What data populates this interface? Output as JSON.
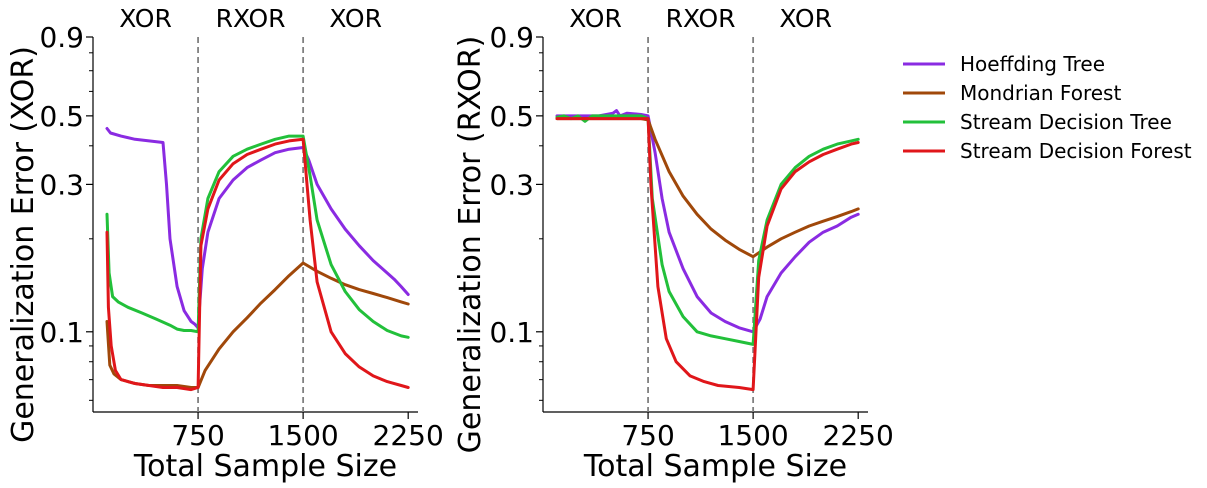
{
  "colors": {
    "hoeffding": "#8a2be2",
    "mondrian": "#a0480a",
    "sdt": "#22c03a",
    "sdf": "#e0161a",
    "divider": "#808080"
  },
  "legend": [
    {
      "key": "hoeffding",
      "label": "Hoeffding Tree"
    },
    {
      "key": "mondrian",
      "label": "Mondrian Forest"
    },
    {
      "key": "sdt",
      "label": "Stream Decision Tree"
    },
    {
      "key": "sdf",
      "label": "Stream Decision Forest"
    }
  ],
  "chart_data": [
    {
      "type": "line",
      "xlabel": "Total Sample Size",
      "ylabel": "Generalization Error (XOR)",
      "xlim": [
        0,
        2320
      ],
      "ylim": [
        0.055,
        0.9
      ],
      "yscale": "log",
      "xticks": [
        750,
        1500,
        2250
      ],
      "xticklabels": [
        "750",
        "1500",
        "2250"
      ],
      "yticks": [
        0.1,
        0.3,
        0.5,
        0.9
      ],
      "yticklabels": [
        "0.1",
        "0.3",
        "0.5",
        "0.9"
      ],
      "dividers": [
        750,
        1500
      ],
      "regions": [
        {
          "label": "XOR",
          "x": 375
        },
        {
          "label": "RXOR",
          "x": 1125
        },
        {
          "label": "XOR",
          "x": 1875
        }
      ],
      "series": [
        {
          "key": "hoeffding",
          "points": [
            [
              100,
              0.455
            ],
            [
              125,
              0.44
            ],
            [
              200,
              0.43
            ],
            [
              300,
              0.42
            ],
            [
              400,
              0.415
            ],
            [
              500,
              0.41
            ],
            [
              525,
              0.3
            ],
            [
              550,
              0.2
            ],
            [
              600,
              0.14
            ],
            [
              650,
              0.117
            ],
            [
              700,
              0.108
            ],
            [
              725,
              0.106
            ],
            [
              750,
              0.103
            ],
            [
              760,
              0.12
            ],
            [
              780,
              0.16
            ],
            [
              820,
              0.21
            ],
            [
              900,
              0.27
            ],
            [
              1000,
              0.31
            ],
            [
              1100,
              0.34
            ],
            [
              1200,
              0.36
            ],
            [
              1300,
              0.38
            ],
            [
              1400,
              0.39
            ],
            [
              1500,
              0.395
            ],
            [
              1540,
              0.36
            ],
            [
              1600,
              0.3
            ],
            [
              1700,
              0.25
            ],
            [
              1800,
              0.215
            ],
            [
              1900,
              0.19
            ],
            [
              2000,
              0.17
            ],
            [
              2100,
              0.155
            ],
            [
              2150,
              0.148
            ],
            [
              2200,
              0.14
            ],
            [
              2250,
              0.132
            ]
          ]
        },
        {
          "key": "mondrian",
          "points": [
            [
              100,
              0.108
            ],
            [
              120,
              0.078
            ],
            [
              150,
              0.073
            ],
            [
              200,
              0.07
            ],
            [
              300,
              0.068
            ],
            [
              400,
              0.067
            ],
            [
              500,
              0.067
            ],
            [
              600,
              0.067
            ],
            [
              700,
              0.066
            ],
            [
              750,
              0.066
            ],
            [
              800,
              0.075
            ],
            [
              900,
              0.088
            ],
            [
              1000,
              0.1
            ],
            [
              1100,
              0.111
            ],
            [
              1200,
              0.124
            ],
            [
              1300,
              0.137
            ],
            [
              1400,
              0.152
            ],
            [
              1500,
              0.167
            ],
            [
              1600,
              0.157
            ],
            [
              1700,
              0.149
            ],
            [
              1800,
              0.142
            ],
            [
              1900,
              0.137
            ],
            [
              2000,
              0.133
            ],
            [
              2100,
              0.129
            ],
            [
              2200,
              0.125
            ],
            [
              2250,
              0.123
            ]
          ]
        },
        {
          "key": "sdt",
          "points": [
            [
              100,
              0.24
            ],
            [
              115,
              0.155
            ],
            [
              140,
              0.13
            ],
            [
              180,
              0.125
            ],
            [
              250,
              0.12
            ],
            [
              350,
              0.115
            ],
            [
              450,
              0.11
            ],
            [
              550,
              0.105
            ],
            [
              600,
              0.102
            ],
            [
              650,
              0.101
            ],
            [
              700,
              0.101
            ],
            [
              750,
              0.1
            ],
            [
              770,
              0.2
            ],
            [
              820,
              0.27
            ],
            [
              900,
              0.33
            ],
            [
              1000,
              0.37
            ],
            [
              1100,
              0.39
            ],
            [
              1200,
              0.405
            ],
            [
              1300,
              0.42
            ],
            [
              1400,
              0.43
            ],
            [
              1500,
              0.43
            ],
            [
              1550,
              0.32
            ],
            [
              1600,
              0.23
            ],
            [
              1700,
              0.165
            ],
            [
              1800,
              0.135
            ],
            [
              1900,
              0.118
            ],
            [
              2000,
              0.108
            ],
            [
              2100,
              0.101
            ],
            [
              2200,
              0.097
            ],
            [
              2250,
              0.096
            ]
          ]
        },
        {
          "key": "sdf",
          "points": [
            [
              100,
              0.21
            ],
            [
              110,
              0.12
            ],
            [
              130,
              0.09
            ],
            [
              160,
              0.075
            ],
            [
              200,
              0.07
            ],
            [
              300,
              0.068
            ],
            [
              400,
              0.067
            ],
            [
              500,
              0.066
            ],
            [
              600,
              0.066
            ],
            [
              700,
              0.065
            ],
            [
              750,
              0.066
            ],
            [
              770,
              0.19
            ],
            [
              820,
              0.25
            ],
            [
              900,
              0.31
            ],
            [
              1000,
              0.35
            ],
            [
              1100,
              0.375
            ],
            [
              1200,
              0.39
            ],
            [
              1300,
              0.405
            ],
            [
              1400,
              0.415
            ],
            [
              1500,
              0.42
            ],
            [
              1550,
              0.23
            ],
            [
              1600,
              0.145
            ],
            [
              1700,
              0.1
            ],
            [
              1800,
              0.085
            ],
            [
              1900,
              0.077
            ],
            [
              2000,
              0.072
            ],
            [
              2100,
              0.069
            ],
            [
              2200,
              0.067
            ],
            [
              2250,
              0.066
            ]
          ]
        }
      ]
    },
    {
      "type": "line",
      "xlabel": "Total Sample Size",
      "ylabel": "Generalization Error (RXOR)",
      "xlim": [
        0,
        2320
      ],
      "ylim": [
        0.055,
        0.9
      ],
      "yscale": "log",
      "xticks": [
        750,
        1500,
        2250
      ],
      "xticklabels": [
        "750",
        "1500",
        "2250"
      ],
      "yticks": [
        0.1,
        0.3,
        0.5,
        0.9
      ],
      "yticklabels": [
        "0.1",
        "0.3",
        "0.5",
        "0.9"
      ],
      "dividers": [
        750,
        1500
      ],
      "regions": [
        {
          "label": "XOR",
          "x": 375
        },
        {
          "label": "RXOR",
          "x": 1125
        },
        {
          "label": "XOR",
          "x": 1875
        }
      ],
      "series": [
        {
          "key": "hoeffding",
          "points": [
            [
              100,
              0.5
            ],
            [
              200,
              0.5
            ],
            [
              300,
              0.5
            ],
            [
              400,
              0.5
            ],
            [
              500,
              0.51
            ],
            [
              525,
              0.52
            ],
            [
              550,
              0.5
            ],
            [
              600,
              0.51
            ],
            [
              700,
              0.505
            ],
            [
              750,
              0.5
            ],
            [
              800,
              0.38
            ],
            [
              850,
              0.27
            ],
            [
              900,
              0.21
            ],
            [
              1000,
              0.16
            ],
            [
              1100,
              0.13
            ],
            [
              1200,
              0.115
            ],
            [
              1300,
              0.108
            ],
            [
              1400,
              0.103
            ],
            [
              1500,
              0.1
            ],
            [
              1550,
              0.11
            ],
            [
              1600,
              0.13
            ],
            [
              1700,
              0.155
            ],
            [
              1800,
              0.175
            ],
            [
              1900,
              0.195
            ],
            [
              2000,
              0.21
            ],
            [
              2100,
              0.22
            ],
            [
              2200,
              0.235
            ],
            [
              2250,
              0.24
            ]
          ]
        },
        {
          "key": "mondrian",
          "points": [
            [
              100,
              0.49
            ],
            [
              200,
              0.49
            ],
            [
              300,
              0.49
            ],
            [
              400,
              0.49
            ],
            [
              500,
              0.49
            ],
            [
              600,
              0.49
            ],
            [
              700,
              0.49
            ],
            [
              750,
              0.485
            ],
            [
              800,
              0.42
            ],
            [
              900,
              0.33
            ],
            [
              1000,
              0.275
            ],
            [
              1100,
              0.24
            ],
            [
              1200,
              0.215
            ],
            [
              1300,
              0.198
            ],
            [
              1400,
              0.185
            ],
            [
              1500,
              0.175
            ],
            [
              1600,
              0.188
            ],
            [
              1700,
              0.2
            ],
            [
              1800,
              0.21
            ],
            [
              1900,
              0.22
            ],
            [
              2000,
              0.228
            ],
            [
              2100,
              0.236
            ],
            [
              2200,
              0.245
            ],
            [
              2250,
              0.25
            ]
          ]
        },
        {
          "key": "sdt",
          "points": [
            [
              100,
              0.495
            ],
            [
              150,
              0.5
            ],
            [
              200,
              0.49
            ],
            [
              250,
              0.5
            ],
            [
              300,
              0.48
            ],
            [
              350,
              0.5
            ],
            [
              400,
              0.5
            ],
            [
              500,
              0.5
            ],
            [
              600,
              0.5
            ],
            [
              700,
              0.5
            ],
            [
              750,
              0.49
            ],
            [
              780,
              0.27
            ],
            [
              850,
              0.165
            ],
            [
              900,
              0.135
            ],
            [
              1000,
              0.112
            ],
            [
              1100,
              0.1
            ],
            [
              1200,
              0.097
            ],
            [
              1300,
              0.095
            ],
            [
              1400,
              0.093
            ],
            [
              1500,
              0.091
            ],
            [
              1540,
              0.17
            ],
            [
              1600,
              0.23
            ],
            [
              1700,
              0.3
            ],
            [
              1800,
              0.34
            ],
            [
              1900,
              0.37
            ],
            [
              2000,
              0.39
            ],
            [
              2100,
              0.405
            ],
            [
              2200,
              0.415
            ],
            [
              2250,
              0.42
            ]
          ]
        },
        {
          "key": "sdf",
          "points": [
            [
              100,
              0.49
            ],
            [
              150,
              0.49
            ],
            [
              200,
              0.49
            ],
            [
              300,
              0.49
            ],
            [
              400,
              0.49
            ],
            [
              500,
              0.49
            ],
            [
              600,
              0.49
            ],
            [
              700,
              0.49
            ],
            [
              750,
              0.49
            ],
            [
              770,
              0.3
            ],
            [
              820,
              0.14
            ],
            [
              880,
              0.095
            ],
            [
              950,
              0.08
            ],
            [
              1050,
              0.072
            ],
            [
              1150,
              0.069
            ],
            [
              1250,
              0.067
            ],
            [
              1400,
              0.066
            ],
            [
              1500,
              0.065
            ],
            [
              1540,
              0.15
            ],
            [
              1600,
              0.22
            ],
            [
              1700,
              0.29
            ],
            [
              1800,
              0.33
            ],
            [
              1900,
              0.355
            ],
            [
              2000,
              0.375
            ],
            [
              2100,
              0.39
            ],
            [
              2200,
              0.405
            ],
            [
              2250,
              0.41
            ]
          ]
        }
      ]
    }
  ]
}
